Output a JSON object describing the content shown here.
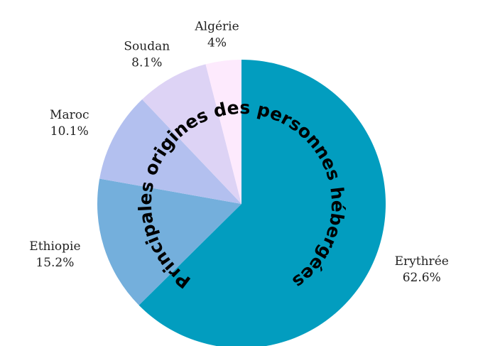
{
  "chart_data": {
    "type": "pie",
    "title": "Principales origines des personnes hébergées",
    "categories": [
      "Erythrée",
      "Ethiopie",
      "Maroc",
      "Soudan",
      "Algérie"
    ],
    "values": [
      62.6,
      15.2,
      10.1,
      8.1,
      4
    ],
    "value_labels": [
      "62.6%",
      "15.2%",
      "10.1%",
      "8.1%",
      "4%"
    ],
    "colors": [
      "#029dbf",
      "#74afdc",
      "#b3c0ef",
      "#ddd3f5",
      "#fdeafd"
    ]
  }
}
